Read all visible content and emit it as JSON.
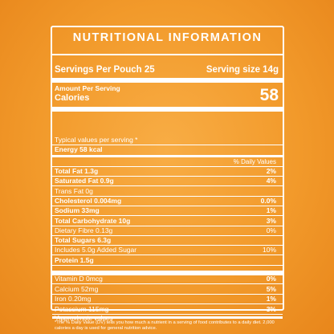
{
  "title": "NUTRITIONAL INFORMATION",
  "servings_per_pouch": "Servings Per Pouch 25",
  "serving_size": "Serving size 14g",
  "amount_per_serving": "Amount Per Serving",
  "calories_label": "Calories",
  "calories_value": "58",
  "typical_values": "Typical values per serving *",
  "energy": "Energy 58 kcal",
  "daily_values_header": "% Daily Values",
  "nutrients": [
    {
      "label": "Total Fat 1.3g",
      "value": "2%",
      "bold": true
    },
    {
      "label": "Saturated Fat 0.9g",
      "value": "4%",
      "bold": true
    },
    {
      "label": "Trans Fat 0g",
      "value": "",
      "bold": false
    },
    {
      "label": "Cholesterol 0.004mg",
      "value": "0.0%",
      "bold": true
    },
    {
      "label": "Sodium 33mg",
      "value": "1%",
      "bold": true
    },
    {
      "label": "Total Carbohydrate 10g",
      "value": "3%",
      "bold": true
    },
    {
      "label": "Dietary Fibre 0.13g",
      "value": "0%",
      "bold": false
    },
    {
      "label": "Total Sugars 6.3g",
      "value": "",
      "bold": true
    },
    {
      "label": "Includes 5.0g Added  Sugar",
      "value": "10%",
      "bold": false
    },
    {
      "label": "Protein 1.5g",
      "value": "",
      "bold": true
    }
  ],
  "vitamins": [
    {
      "label": "Vitamin D 0mcg",
      "value": "0%"
    },
    {
      "label": "Calcium 52mg",
      "value": "5%"
    },
    {
      "label": "Iron 0.20mg",
      "value": "1%"
    },
    {
      "label": "Potassium 115mg",
      "value": "3%"
    }
  ],
  "footnote": "*The % Daily Value (DV) tells you how much a nutrient in a serving of food contributes to a daily diet. 2,000 calories a day is used for general nutrition advice.",
  "approximate_note": "*Approximate values"
}
